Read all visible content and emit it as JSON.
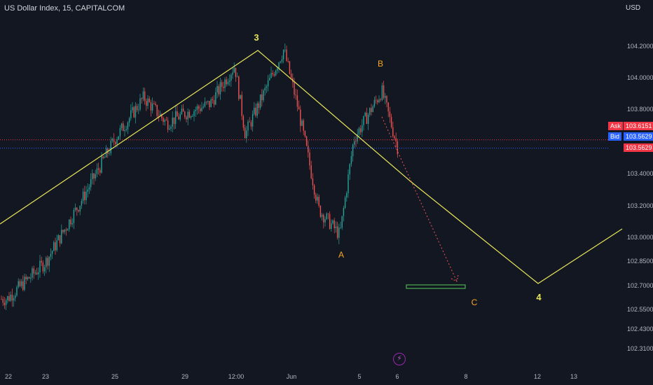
{
  "chart_title": "US Dollar Index, 15, CAPITALCOM",
  "currency": "USD",
  "currency_sub": "",
  "quote": {
    "ask_label": "Ask",
    "ask_value": "103.6151",
    "bid_label": "Bid",
    "bid_value": "103.5629",
    "last_value": "103.5629"
  },
  "colors": {
    "background": "#131722",
    "up": "#26a69a",
    "down": "#ef5350",
    "wave": "#e8e55a",
    "orange": "#f5a623",
    "ask": "#f23645",
    "bid": "#2962ff",
    "target": "#4caf50"
  },
  "icons": {
    "event": "lightning-icon"
  },
  "chart_data": {
    "type": "candlestick",
    "title": "US Dollar Index, 15, CAPITALCOM",
    "xlabel": "",
    "ylabel": "",
    "ylim": [
      102.23,
      104.36
    ],
    "y_scale": "linear",
    "grid": false,
    "legend": "none",
    "x_tick_labels": [
      "22",
      "23",
      "25",
      "29",
      "12:00",
      "Jun",
      "5",
      "6",
      "8",
      "12",
      "13"
    ],
    "y_tick_labels": [
      "104.2000",
      "104.0000",
      "103.8000",
      "103.4000",
      "103.2000",
      "103.0000",
      "102.8500",
      "102.7000",
      "102.5500",
      "102.4300",
      "102.3100"
    ],
    "price_path": [
      {
        "t": "22",
        "price": 102.62
      },
      {
        "t": "23",
        "price": 102.85
      },
      {
        "t": "24",
        "price": 103.25
      },
      {
        "t": "25",
        "price": 103.62
      },
      {
        "t": "26",
        "price": 103.88
      },
      {
        "t": "27",
        "price": 103.72
      },
      {
        "t": "29",
        "price": 103.78
      },
      {
        "t": "30",
        "price": 103.84
      },
      {
        "t": "12:00",
        "price": 104.08
      },
      {
        "t": "31",
        "price": 103.65
      },
      {
        "t": "Jun",
        "price": 104.18
      },
      {
        "t": "2",
        "price": 103.82
      },
      {
        "t": "3",
        "price": 103.18
      },
      {
        "t": "4",
        "price": 103.02
      },
      {
        "t": "4b",
        "price": 103.62
      },
      {
        "t": "5",
        "price": 103.92
      },
      {
        "t": "6",
        "price": 103.56
      }
    ],
    "wave_labels": [
      {
        "label": "3",
        "price": 104.18
      },
      {
        "label": "B",
        "price": 104.05
      },
      {
        "label": "A",
        "price": 102.98
      },
      {
        "label": "C",
        "price": 102.6
      },
      {
        "label": "4",
        "price": 102.62
      }
    ],
    "target_zone": [
      102.68,
      102.71
    ],
    "ask_line": 103.6151,
    "bid_line": 103.5629
  }
}
